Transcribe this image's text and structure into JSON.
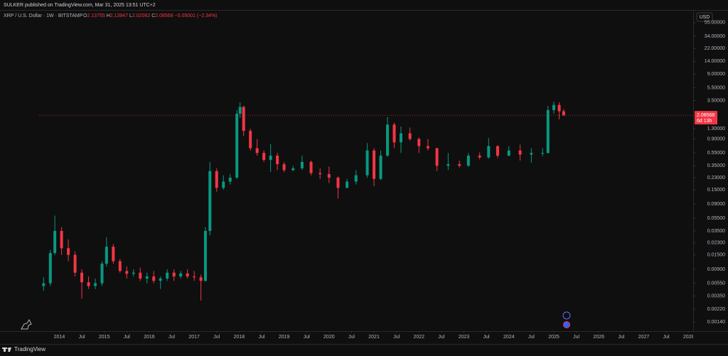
{
  "chart_data": {
    "type": "candlestick",
    "publisher_line": "SULKER published on TradingView.com, Mar 31, 2025 13:51 UTC+2",
    "symbol_line": "XRP / U.S. Dollar · 1W · BITSTAMP",
    "ohlc_letters": [
      "O",
      "H",
      "L",
      "C"
    ],
    "ohlc": [
      2.13755,
      2.13947,
      2.02062,
      2.08568
    ],
    "change": {
      "value": -0.05001,
      "label": "−0.05001"
    },
    "change_percent": {
      "value": -2.34,
      "label": "(−2.34%)"
    },
    "currency": "USD",
    "last_price": 2.08568,
    "countdown": "6d 13h",
    "brand": "TradingView",
    "log_scale": true,
    "up_color": "#089981",
    "down_color": "#f23645",
    "xlim": [
      2013.55,
      2028.1
    ],
    "ylim": [
      0.00104,
      57.6
    ],
    "xticks": [
      {
        "value": 2014,
        "label": "2014"
      },
      {
        "value": 2014.5,
        "label": "Jul"
      },
      {
        "value": 2015,
        "label": "2015"
      },
      {
        "value": 2015.5,
        "label": "Jul"
      },
      {
        "value": 2016,
        "label": "2016"
      },
      {
        "value": 2016.5,
        "label": "Jul"
      },
      {
        "value": 2017,
        "label": "2017"
      },
      {
        "value": 2017.5,
        "label": "Jul"
      },
      {
        "value": 2018,
        "label": "2018"
      },
      {
        "value": 2018.5,
        "label": "Jul"
      },
      {
        "value": 2019,
        "label": "2019"
      },
      {
        "value": 2019.5,
        "label": "Jul"
      },
      {
        "value": 2020,
        "label": "2020"
      },
      {
        "value": 2020.5,
        "label": "Jul"
      },
      {
        "value": 2021,
        "label": "2021"
      },
      {
        "value": 2021.5,
        "label": "Jul"
      },
      {
        "value": 2022,
        "label": "2022"
      },
      {
        "value": 2022.5,
        "label": "Jul"
      },
      {
        "value": 2023,
        "label": "2023"
      },
      {
        "value": 2023.5,
        "label": "Jul"
      },
      {
        "value": 2024,
        "label": "2024"
      },
      {
        "value": 2024.5,
        "label": "Jul"
      },
      {
        "value": 2025,
        "label": "2025"
      },
      {
        "value": 2025.5,
        "label": "Jul"
      },
      {
        "value": 2026,
        "label": "2026"
      },
      {
        "value": 2026.5,
        "label": "Jul"
      },
      {
        "value": 2027,
        "label": "2027"
      },
      {
        "value": 2027.5,
        "label": "Jul"
      },
      {
        "value": 2028,
        "label": "2028"
      }
    ],
    "yticks": [
      {
        "value": 55,
        "label": "55.00000"
      },
      {
        "value": 34,
        "label": "34.00000"
      },
      {
        "value": 22,
        "label": "22.00000"
      },
      {
        "value": 14,
        "label": "14.00000"
      },
      {
        "value": 9,
        "label": "9.00000"
      },
      {
        "value": 5.5,
        "label": "5.50000"
      },
      {
        "value": 3.5,
        "label": "3.50000"
      },
      {
        "value": 1.3,
        "label": "1.30000"
      },
      {
        "value": 0.9,
        "label": "0.90000"
      },
      {
        "value": 0.55,
        "label": "0.55000"
      },
      {
        "value": 0.35,
        "label": "0.35000"
      },
      {
        "value": 0.23,
        "label": "0.23000"
      },
      {
        "value": 0.15,
        "label": "0.15000"
      },
      {
        "value": 0.09,
        "label": "0.09000"
      },
      {
        "value": 0.055,
        "label": "0.05500"
      },
      {
        "value": 0.035,
        "label": "0.03500"
      },
      {
        "value": 0.023,
        "label": "0.02300"
      },
      {
        "value": 0.015,
        "label": "0.01500"
      },
      {
        "value": 0.009,
        "label": "0.00900"
      },
      {
        "value": 0.0055,
        "label": "0.00550"
      },
      {
        "value": 0.0035,
        "label": "0.00350"
      },
      {
        "value": 0.0022,
        "label": "0.00220"
      },
      {
        "value": 0.0014,
        "label": "0.00140"
      }
    ],
    "candles": [
      [
        2013.65,
        0.005,
        0.0068,
        0.0042,
        0.0055
      ],
      [
        2013.8,
        0.0055,
        0.018,
        0.005,
        0.016
      ],
      [
        2013.9,
        0.016,
        0.06,
        0.015,
        0.035
      ],
      [
        2014.05,
        0.035,
        0.04,
        0.015,
        0.019
      ],
      [
        2014.2,
        0.019,
        0.026,
        0.012,
        0.015
      ],
      [
        2014.35,
        0.015,
        0.017,
        0.007,
        0.008
      ],
      [
        2014.5,
        0.008,
        0.009,
        0.0032,
        0.0057
      ],
      [
        2014.65,
        0.0057,
        0.007,
        0.0045,
        0.005
      ],
      [
        2014.8,
        0.005,
        0.0065,
        0.0045,
        0.0055
      ],
      [
        2014.95,
        0.0055,
        0.012,
        0.005,
        0.011
      ],
      [
        2015.05,
        0.011,
        0.028,
        0.01,
        0.02
      ],
      [
        2015.2,
        0.02,
        0.022,
        0.011,
        0.012
      ],
      [
        2015.35,
        0.012,
        0.013,
        0.008,
        0.0085
      ],
      [
        2015.5,
        0.0085,
        0.01,
        0.0065,
        0.0077
      ],
      [
        2015.65,
        0.0077,
        0.009,
        0.007,
        0.008
      ],
      [
        2015.8,
        0.008,
        0.0095,
        0.006,
        0.0065
      ],
      [
        2015.95,
        0.0065,
        0.008,
        0.0055,
        0.007
      ],
      [
        2016.1,
        0.007,
        0.0085,
        0.0055,
        0.006
      ],
      [
        2016.25,
        0.006,
        0.007,
        0.0045,
        0.0065
      ],
      [
        2016.4,
        0.0065,
        0.009,
        0.006,
        0.008
      ],
      [
        2016.55,
        0.008,
        0.009,
        0.006,
        0.007
      ],
      [
        2016.7,
        0.007,
        0.0085,
        0.0065,
        0.0078
      ],
      [
        2016.85,
        0.0078,
        0.009,
        0.0065,
        0.007
      ],
      [
        2017.0,
        0.007,
        0.0085,
        0.006,
        0.0068
      ],
      [
        2017.15,
        0.0068,
        0.0075,
        0.003,
        0.006
      ],
      [
        2017.25,
        0.006,
        0.04,
        0.0058,
        0.035
      ],
      [
        2017.35,
        0.035,
        0.4,
        0.03,
        0.29
      ],
      [
        2017.5,
        0.29,
        0.32,
        0.14,
        0.16
      ],
      [
        2017.65,
        0.16,
        0.25,
        0.15,
        0.2
      ],
      [
        2017.8,
        0.2,
        0.26,
        0.18,
        0.23
      ],
      [
        2017.95,
        0.23,
        2.5,
        0.22,
        2.2
      ],
      [
        2018.02,
        2.2,
        3.3,
        1.9,
        2.8
      ],
      [
        2018.1,
        2.8,
        2.9,
        1.0,
        1.2
      ],
      [
        2018.25,
        1.2,
        1.3,
        0.6,
        0.65
      ],
      [
        2018.4,
        0.65,
        0.9,
        0.5,
        0.55
      ],
      [
        2018.55,
        0.55,
        0.6,
        0.4,
        0.43
      ],
      [
        2018.7,
        0.43,
        0.75,
        0.28,
        0.5
      ],
      [
        2018.85,
        0.5,
        0.55,
        0.3,
        0.37
      ],
      [
        2019.0,
        0.37,
        0.4,
        0.28,
        0.3
      ],
      [
        2019.2,
        0.3,
        0.35,
        0.29,
        0.32
      ],
      [
        2019.4,
        0.32,
        0.5,
        0.3,
        0.4
      ],
      [
        2019.6,
        0.4,
        0.42,
        0.25,
        0.27
      ],
      [
        2019.8,
        0.27,
        0.32,
        0.22,
        0.26
      ],
      [
        2020.0,
        0.26,
        0.34,
        0.19,
        0.23
      ],
      [
        2020.2,
        0.23,
        0.24,
        0.11,
        0.16
      ],
      [
        2020.4,
        0.16,
        0.22,
        0.16,
        0.2
      ],
      [
        2020.6,
        0.2,
        0.3,
        0.18,
        0.25
      ],
      [
        2020.85,
        0.25,
        0.78,
        0.23,
        0.6
      ],
      [
        2021.0,
        0.6,
        0.65,
        0.17,
        0.22
      ],
      [
        2021.15,
        0.22,
        0.6,
        0.21,
        0.5
      ],
      [
        2021.3,
        0.5,
        1.96,
        0.48,
        1.5
      ],
      [
        2021.45,
        1.5,
        1.6,
        0.65,
        0.8
      ],
      [
        2021.6,
        0.8,
        1.4,
        0.55,
        1.1
      ],
      [
        2021.8,
        1.1,
        1.35,
        0.85,
        0.9
      ],
      [
        2022.0,
        0.9,
        0.95,
        0.55,
        0.7
      ],
      [
        2022.2,
        0.7,
        0.9,
        0.6,
        0.65
      ],
      [
        2022.4,
        0.65,
        0.66,
        0.29,
        0.35
      ],
      [
        2022.65,
        0.35,
        0.55,
        0.3,
        0.37
      ],
      [
        2022.9,
        0.37,
        0.42,
        0.33,
        0.35
      ],
      [
        2023.1,
        0.35,
        0.55,
        0.34,
        0.5
      ],
      [
        2023.35,
        0.5,
        0.56,
        0.44,
        0.47
      ],
      [
        2023.55,
        0.47,
        0.93,
        0.45,
        0.7
      ],
      [
        2023.75,
        0.7,
        0.72,
        0.46,
        0.5
      ],
      [
        2024.0,
        0.5,
        0.7,
        0.49,
        0.6
      ],
      [
        2024.25,
        0.6,
        0.74,
        0.42,
        0.52
      ],
      [
        2024.5,
        0.52,
        0.65,
        0.39,
        0.55
      ],
      [
        2024.75,
        0.55,
        0.65,
        0.49,
        0.55
      ],
      [
        2024.87,
        0.55,
        2.9,
        0.54,
        2.5
      ],
      [
        2025.0,
        2.5,
        3.4,
        2.2,
        3.0
      ],
      [
        2025.12,
        3.0,
        3.3,
        1.8,
        2.4
      ],
      [
        2025.22,
        2.4,
        2.6,
        2.02062,
        2.08568
      ]
    ]
  }
}
